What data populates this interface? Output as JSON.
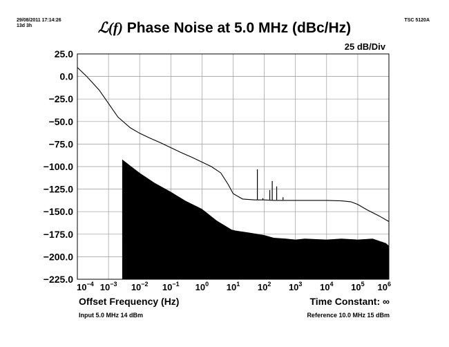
{
  "header": {
    "timestamp": "29/08/2011 17:14:26",
    "duration": "13d 3h",
    "instrument": "TSC 5120A",
    "title_prefix": "ℒ(f)",
    "title": "Phase Noise at 5.0 MHz (dBc/Hz)",
    "scale": "25 dB/Div"
  },
  "footer": {
    "xlabel": "Offset Frequency (Hz)",
    "time_constant_label": "Time Constant: ∞",
    "input_info": "Input 5.0 MHz 14 dBm",
    "reference_info": "Reference 10.0 MHz 15 dBm"
  },
  "chart_data": {
    "type": "line",
    "title": "ℒ(f) Phase Noise at 5.0 MHz (dBc/Hz)",
    "xlabel": "Offset Frequency (Hz)",
    "x_scale": "log",
    "xlim": [
      0.0001,
      1000000
    ],
    "ylim": [
      -225,
      25
    ],
    "y_ticks": [
      "25.0",
      "0.0",
      "−25.0",
      "−50.0",
      "−75.0",
      "−100.0",
      "−125.0",
      "−150.0",
      "−175.0",
      "−200.0",
      "−225.0"
    ],
    "y_tick_values": [
      25,
      0,
      -25,
      -50,
      -75,
      -100,
      -125,
      -150,
      -175,
      -200,
      -225
    ],
    "x_ticks": [
      {
        "base": "10",
        "exp": "−4",
        "value": 0.0001
      },
      {
        "base": "10",
        "exp": "−3",
        "value": 0.001
      },
      {
        "base": "10",
        "exp": "−2",
        "value": 0.01
      },
      {
        "base": "10",
        "exp": "−1",
        "value": 0.1
      },
      {
        "base": "10",
        "exp": "0",
        "value": 1
      },
      {
        "base": "10",
        "exp": "1",
        "value": 10
      },
      {
        "base": "10",
        "exp": "2",
        "value": 100
      },
      {
        "base": "10",
        "exp": "3",
        "value": 1000
      },
      {
        "base": "10",
        "exp": "4",
        "value": 10000
      },
      {
        "base": "10",
        "exp": "5",
        "value": 100000
      },
      {
        "base": "10",
        "exp": "6",
        "value": 1000000
      }
    ],
    "grid": true,
    "series": [
      {
        "role": "phase-noise",
        "style": "line",
        "color": "#000000",
        "points": [
          [
            0.0001,
            10
          ],
          [
            0.0002,
            0
          ],
          [
            0.0005,
            -15
          ],
          [
            0.001,
            -30
          ],
          [
            0.002,
            -45
          ],
          [
            0.005,
            -57
          ],
          [
            0.01,
            -63
          ],
          [
            0.02,
            -68
          ],
          [
            0.05,
            -74
          ],
          [
            0.1,
            -79
          ],
          [
            0.2,
            -84
          ],
          [
            0.5,
            -90
          ],
          [
            1,
            -95
          ],
          [
            2,
            -100
          ],
          [
            4,
            -107
          ],
          [
            7,
            -120
          ],
          [
            10,
            -130
          ],
          [
            20,
            -136
          ],
          [
            50,
            -137
          ],
          [
            100,
            -137
          ],
          [
            200,
            -137.5
          ],
          [
            500,
            -137.5
          ],
          [
            1000,
            -137.5
          ],
          [
            10000,
            -137.5
          ],
          [
            30000,
            -138
          ],
          [
            60000,
            -139
          ],
          [
            100000,
            -142
          ],
          [
            200000,
            -148
          ],
          [
            500000,
            -155
          ],
          [
            1000000,
            -161
          ]
        ],
        "spurs": [
          [
            60,
            -103
          ],
          [
            90,
            -135
          ],
          [
            150,
            -126
          ],
          [
            180,
            -116
          ],
          [
            250,
            -122
          ],
          [
            400,
            -134
          ]
        ]
      },
      {
        "role": "measurement-floor",
        "style": "filled-area",
        "color": "#000000",
        "points": [
          [
            0.00275,
            -92
          ],
          [
            0.005,
            -99
          ],
          [
            0.01,
            -107
          ],
          [
            0.03,
            -118
          ],
          [
            0.1,
            -128
          ],
          [
            0.3,
            -138
          ],
          [
            1,
            -147
          ],
          [
            3,
            -160
          ],
          [
            9,
            -170
          ],
          [
            12,
            -171
          ],
          [
            30,
            -173
          ],
          [
            100,
            -176
          ],
          [
            200,
            -179
          ],
          [
            500,
            -180
          ],
          [
            1000,
            -181
          ],
          [
            2000,
            -180
          ],
          [
            10000,
            -181
          ],
          [
            30000,
            -180
          ],
          [
            100000,
            -181
          ],
          [
            300000,
            -180
          ],
          [
            800000,
            -185
          ],
          [
            1000000,
            -188
          ]
        ]
      }
    ]
  }
}
